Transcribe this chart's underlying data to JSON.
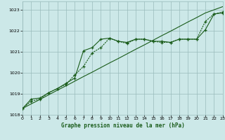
{
  "title": "Graphe pression niveau de la mer (hPa)",
  "background_color": "#cce8e8",
  "grid_color": "#99bbbb",
  "line_color": "#1a5c1a",
  "x_values": [
    0,
    1,
    2,
    3,
    4,
    5,
    6,
    7,
    8,
    9,
    10,
    11,
    12,
    13,
    14,
    15,
    16,
    17,
    18,
    19,
    20,
    21,
    22,
    23
  ],
  "line_straight": [
    1018.3,
    1018.52,
    1018.73,
    1018.95,
    1019.17,
    1019.38,
    1019.6,
    1019.82,
    1020.03,
    1020.25,
    1020.47,
    1020.68,
    1020.9,
    1021.12,
    1021.33,
    1021.55,
    1021.77,
    1021.98,
    1022.2,
    1022.42,
    1022.63,
    1022.85,
    1023.0,
    1023.15
  ],
  "line_marked": [
    1018.3,
    1018.75,
    1018.8,
    1019.05,
    1019.25,
    1019.5,
    1019.75,
    1021.05,
    1021.2,
    1021.6,
    1021.65,
    1021.5,
    1021.45,
    1021.6,
    1021.6,
    1021.5,
    1021.5,
    1021.45,
    1021.6,
    1021.6,
    1021.6,
    1022.05,
    1022.8,
    1022.85
  ],
  "line_dotted": [
    1018.3,
    1018.65,
    1018.75,
    1019.05,
    1019.25,
    1019.45,
    1019.9,
    1020.3,
    1020.95,
    1021.2,
    1021.65,
    1021.5,
    1021.4,
    1021.6,
    1021.6,
    1021.5,
    1021.45,
    1021.45,
    1021.6,
    1021.6,
    1021.6,
    1022.45,
    1022.8,
    1022.9
  ],
  "ylim": [
    1018.0,
    1023.4
  ],
  "yticks": [
    1018,
    1019,
    1020,
    1021,
    1022,
    1023
  ],
  "xlim": [
    0,
    23
  ],
  "xticks": [
    0,
    1,
    2,
    3,
    4,
    5,
    6,
    7,
    8,
    9,
    10,
    11,
    12,
    13,
    14,
    15,
    16,
    17,
    18,
    19,
    20,
    21,
    22,
    23
  ]
}
